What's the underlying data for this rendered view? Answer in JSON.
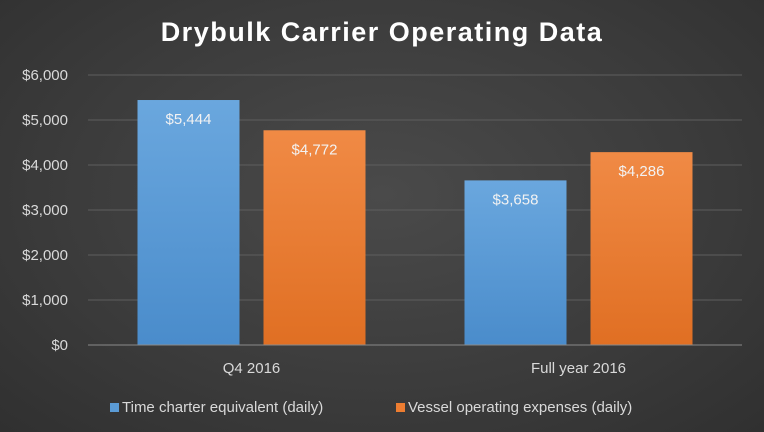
{
  "chart_data": {
    "type": "bar",
    "title": "Drybulk Carrier Operating Data",
    "categories": [
      "Q4 2016",
      "Full year 2016"
    ],
    "series": [
      {
        "name": "Time charter equivalent (daily)",
        "values": [
          5444,
          3658
        ],
        "labels": [
          "$5,444",
          "$3,658"
        ],
        "color": "#5b9bd5"
      },
      {
        "name": "Vessel operating expenses (daily)",
        "values": [
          4772,
          4286
        ],
        "labels": [
          "$4,772",
          "$4,286"
        ],
        "color": "#ed7d31"
      }
    ],
    "yticks": [
      0,
      1000,
      2000,
      3000,
      4000,
      5000,
      6000
    ],
    "ytick_labels": [
      "$0",
      "$1,000",
      "$2,000",
      "$3,000",
      "$4,000",
      "$5,000",
      "$6,000"
    ],
    "ylim": [
      0,
      6000
    ],
    "grid": true,
    "legend_position": "bottom",
    "xlabel": "",
    "ylabel": ""
  }
}
